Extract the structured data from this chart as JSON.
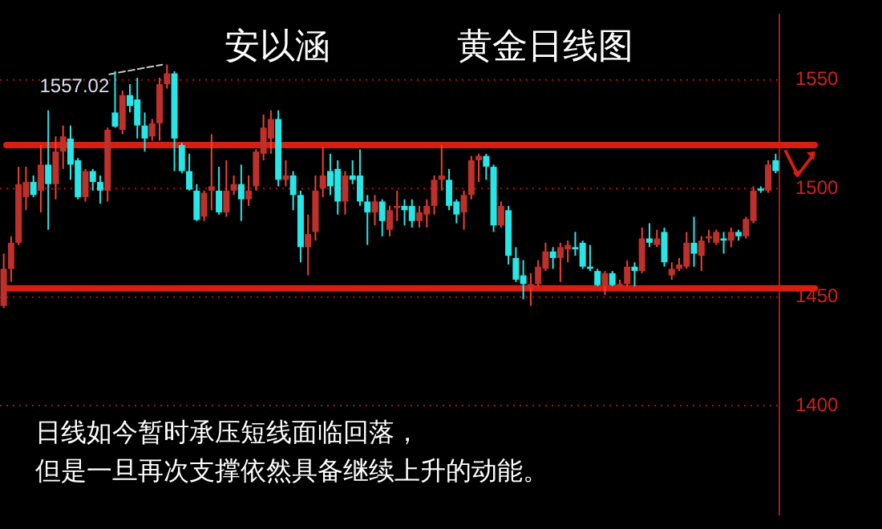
{
  "chart_data": {
    "type": "candlestick",
    "title": "黄金日线图",
    "subtitle": "安以涵",
    "categories": [
      null,
      null,
      null,
      null,
      null,
      null,
      null,
      null,
      null,
      null,
      null,
      null,
      null,
      null,
      null,
      null,
      null,
      null,
      null,
      null,
      null,
      null,
      null,
      null,
      null,
      null,
      null,
      null,
      null,
      null,
      null,
      null,
      null,
      null,
      null,
      null,
      null,
      null,
      null,
      null,
      null,
      null,
      null,
      null,
      null,
      null,
      null,
      null,
      null,
      null,
      null,
      null,
      null,
      null,
      null,
      null,
      null,
      null,
      null,
      null,
      null,
      null,
      null,
      null,
      null,
      null,
      null,
      null,
      null,
      null,
      null,
      null,
      null,
      null,
      null,
      null,
      null,
      null,
      null,
      null,
      null,
      null,
      null,
      null,
      null,
      null,
      null,
      null,
      null,
      null,
      null,
      null,
      null,
      null,
      null,
      null,
      null,
      null,
      null,
      null,
      null,
      null,
      null,
      null,
      null
    ],
    "ohlc": [
      [
        1446,
        1470,
        1445,
        1463
      ],
      [
        1463,
        1478,
        1457,
        1475
      ],
      [
        1475,
        1510,
        1474,
        1502
      ],
      [
        1496,
        1510,
        1490,
        1503
      ],
      [
        1503,
        1506,
        1496,
        1497
      ],
      [
        1499,
        1520,
        1489,
        1511
      ],
      [
        1511,
        1536,
        1481,
        1502
      ],
      [
        1502,
        1524,
        1495,
        1517
      ],
      [
        1517,
        1529,
        1509,
        1524
      ],
      [
        1523,
        1529,
        1504,
        1511
      ],
      [
        1513,
        1514,
        1495,
        1496
      ],
      [
        1496,
        1509,
        1494,
        1508
      ],
      [
        1508,
        1509,
        1499,
        1503
      ],
      [
        1503,
        1506,
        1493,
        1499
      ],
      [
        1499,
        1528,
        1494,
        1527
      ],
      [
        1535,
        1554,
        1528,
        1528.5
      ],
      [
        1527,
        1545,
        1525,
        1543
      ],
      [
        1543,
        1548,
        1535,
        1538
      ],
      [
        1541,
        1551,
        1523,
        1529
      ],
      [
        1529,
        1535,
        1517,
        1523
      ],
      [
        1524,
        1532,
        1522,
        1530
      ],
      [
        1530,
        1551,
        1522,
        1548
      ],
      [
        1548,
        1557.02,
        1546,
        1553
      ],
      [
        1553,
        1554,
        1508,
        1523
      ],
      [
        1520,
        1521,
        1507,
        1508
      ],
      [
        1508,
        1516,
        1499,
        1499.5
      ],
      [
        1499,
        1502,
        1485,
        1485.5
      ],
      [
        1487,
        1499,
        1485,
        1498
      ],
      [
        1499,
        1525,
        1490,
        1501
      ],
      [
        1499,
        1510,
        1488,
        1489
      ],
      [
        1489,
        1513,
        1487,
        1499
      ],
      [
        1499,
        1506,
        1497,
        1502
      ],
      [
        1502,
        1511,
        1485,
        1495
      ],
      [
        1495,
        1506,
        1492,
        1499
      ],
      [
        1501,
        1518,
        1499,
        1517
      ],
      [
        1516,
        1534,
        1513,
        1528
      ],
      [
        1523,
        1536,
        1516,
        1532
      ],
      [
        1532,
        1536,
        1501,
        1504
      ],
      [
        1504,
        1513,
        1501,
        1506
      ],
      [
        1506,
        1508,
        1490,
        1497
      ],
      [
        1497,
        1499,
        1466,
        1473
      ],
      [
        1473,
        1488,
        1460,
        1479
      ],
      [
        1480,
        1506,
        1476,
        1499
      ],
      [
        1500,
        1519,
        1496,
        1506
      ],
      [
        1508,
        1516,
        1497,
        1501
      ],
      [
        1509,
        1513,
        1488,
        1494
      ],
      [
        1494,
        1508,
        1488,
        1506
      ],
      [
        1506,
        1513,
        1502,
        1504
      ],
      [
        1506,
        1518,
        1492,
        1494
      ],
      [
        1494,
        1497,
        1474,
        1489
      ],
      [
        1489,
        1497,
        1483,
        1494
      ],
      [
        1494,
        1495,
        1478,
        1485
      ],
      [
        1481,
        1492,
        1478,
        1490
      ],
      [
        1491,
        1499,
        1485,
        1492
      ],
      [
        1492,
        1495,
        1483,
        1490
      ],
      [
        1492,
        1495,
        1482,
        1485
      ],
      [
        1485,
        1492,
        1482,
        1489
      ],
      [
        1488,
        1495,
        1482,
        1492
      ],
      [
        1492,
        1506,
        1488,
        1504
      ],
      [
        1504,
        1520,
        1499,
        1506
      ],
      [
        1504,
        1509,
        1490,
        1492
      ],
      [
        1494,
        1495,
        1484,
        1488
      ],
      [
        1489,
        1499,
        1481,
        1497
      ],
      [
        1497,
        1515,
        1495,
        1513
      ],
      [
        1513,
        1516,
        1503,
        1515
      ],
      [
        1515,
        1516,
        1504,
        1510
      ],
      [
        1510,
        1511,
        1480,
        1483
      ],
      [
        1483,
        1494,
        1482,
        1492
      ],
      [
        1490,
        1492,
        1465,
        1469
      ],
      [
        1468,
        1473,
        1457,
        1458
      ],
      [
        1460,
        1467,
        1449,
        1456
      ],
      [
        1454,
        1461,
        1446,
        1456
      ],
      [
        1456,
        1467,
        1455,
        1464
      ],
      [
        1463,
        1475,
        1462,
        1471
      ],
      [
        1471,
        1473,
        1463,
        1468
      ],
      [
        1468,
        1475,
        1457,
        1473
      ],
      [
        1472,
        1476,
        1466,
        1474
      ],
      [
        1473,
        1480,
        1469,
        1472
      ],
      [
        1475,
        1476,
        1463,
        1464
      ],
      [
        1464,
        1474,
        1462,
        1463
      ],
      [
        1462,
        1463,
        1455,
        1455.5
      ],
      [
        1455,
        1462,
        1451,
        1461
      ],
      [
        1461,
        1462,
        1455,
        1455.5
      ],
      [
        1455,
        1458,
        1455,
        1456
      ],
      [
        1456,
        1467,
        1455,
        1464
      ],
      [
        1464,
        1466,
        1455,
        1462
      ],
      [
        1462,
        1482,
        1461,
        1477
      ],
      [
        1477,
        1484,
        1473,
        1475
      ],
      [
        1474,
        1481,
        1473,
        1477
      ],
      [
        1480,
        1482,
        1464,
        1466
      ],
      [
        1460,
        1466,
        1458,
        1463
      ],
      [
        1463,
        1468,
        1462,
        1465
      ],
      [
        1464,
        1480,
        1463,
        1475
      ],
      [
        1475,
        1487,
        1464,
        1470
      ],
      [
        1469,
        1478,
        1462,
        1476
      ],
      [
        1477,
        1481,
        1475,
        1478
      ],
      [
        1475,
        1481,
        1474,
        1480
      ],
      [
        1477,
        1480,
        1470,
        1476
      ],
      [
        1476,
        1482,
        1473,
        1480
      ],
      [
        1480,
        1481,
        1476,
        1478
      ],
      [
        1478,
        1487,
        1477,
        1486
      ],
      [
        1485,
        1501,
        1484,
        1499
      ],
      [
        1500,
        1501,
        1498,
        1499
      ],
      [
        1499,
        1513,
        1498,
        1511
      ],
      [
        1513,
        1516,
        1507,
        1508
      ]
    ],
    "ylim": [
      1350,
      1580
    ],
    "yticks": [
      1400,
      1450,
      1500,
      1550
    ],
    "grid": "y",
    "legend": false,
    "tick_labels": "y",
    "ref_lines": [
      {
        "axis": "y",
        "value": 1520,
        "color": "#d81e10"
      },
      {
        "axis": "y",
        "value": 1454,
        "color": "#d81e10"
      }
    ],
    "annotations": [
      "1557.02",
      "日线如今暂时承压短线面临回落，",
      "但是一旦再次支撑依然具备继续上升的动能。"
    ]
  }
}
